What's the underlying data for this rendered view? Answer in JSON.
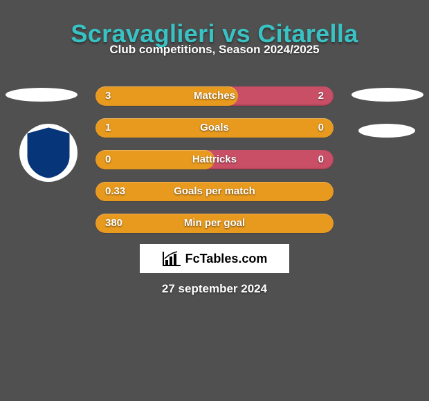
{
  "title": {
    "text": "Scravaglieri vs Citarella",
    "color": "#39c2c4"
  },
  "subtitle": "Club competitions, Season 2024/2025",
  "date": "27 september 2024",
  "background_color": "#505050",
  "bar_track_color": "#c94f66",
  "bar_fill_color": "#e89a1e",
  "club_badge": {
    "outer_color": "#06357a",
    "stripe_dark": "#0a0a0a",
    "stripe_blue": "#2a63b7",
    "lion_color": "#d8a438"
  },
  "watermark": {
    "text": "FcTables.com"
  },
  "rows": [
    {
      "label": "Matches",
      "left": "3",
      "right": "2",
      "fill_percent": 60
    },
    {
      "label": "Goals",
      "left": "1",
      "right": "0",
      "fill_percent": 100,
      "remainder_color": "#5ea4c6"
    },
    {
      "label": "Hattricks",
      "left": "0",
      "right": "0",
      "fill_percent": 50
    },
    {
      "label": "Goals per match",
      "left": "0.33",
      "right": "",
      "fill_percent": 100
    },
    {
      "label": "Min per goal",
      "left": "380",
      "right": "",
      "fill_percent": 100
    }
  ]
}
